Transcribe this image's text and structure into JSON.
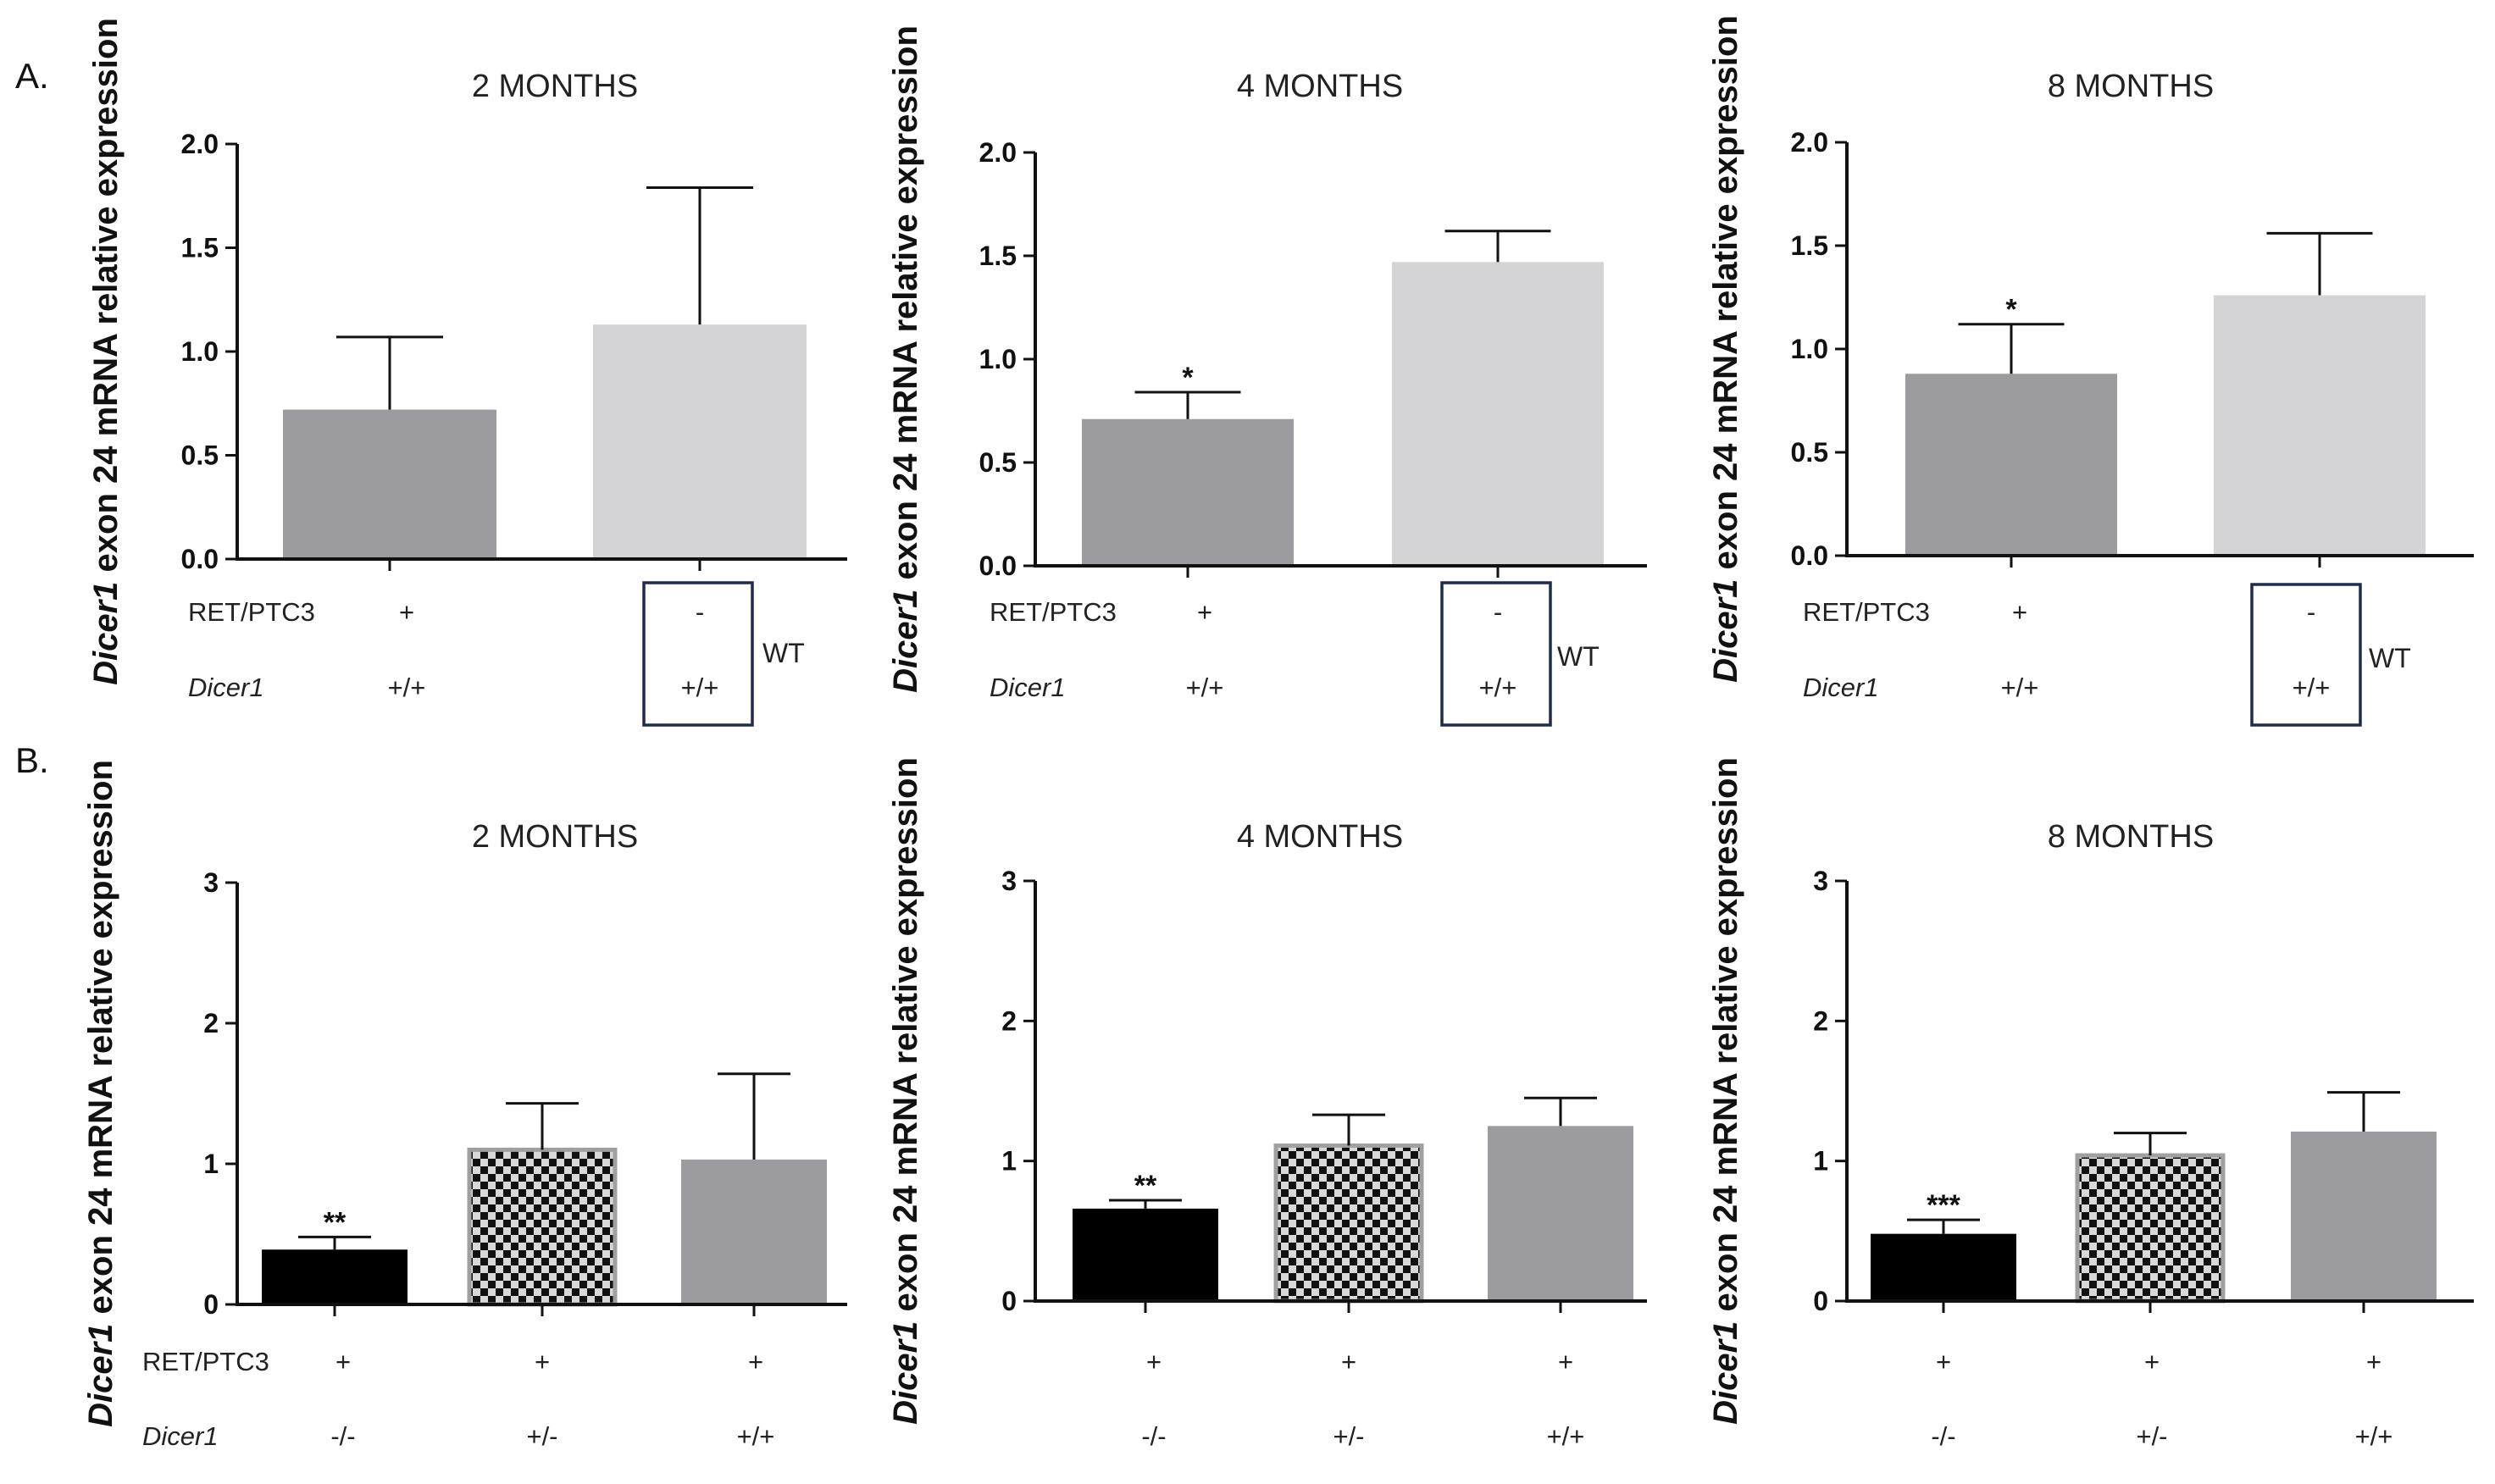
{
  "figure": {
    "panel_letters": [
      "A.",
      "B."
    ],
    "colors": {
      "dark_gray": "#9c9ca0",
      "light_gray": "#d4d4d6",
      "black": "#000000",
      "checker_dark": "#111111",
      "checker_light": "#d8d8d8",
      "checker_border": "#a0a0a0",
      "wt_box": "#1f2d4a"
    }
  },
  "chart_data": [
    {
      "id": "A1",
      "row": "A",
      "type": "bar",
      "title": "2 MONTHS",
      "ylabel_gene": "Dicer1",
      "ylabel_rest": " exon 24 mRNA relative expression",
      "ylim": [
        0,
        2.0
      ],
      "yticks": [
        "0.0",
        "0.5",
        "1.0",
        "1.5",
        "2.0"
      ],
      "bars": [
        {
          "value": 0.72,
          "error": 0.35,
          "color": "#9c9ca0",
          "fill": "solid",
          "sig": ""
        },
        {
          "value": 1.13,
          "error": 0.66,
          "color": "#d4d4d6",
          "fill": "solid",
          "sig": ""
        }
      ],
      "genotype_rows": [
        {
          "label": "RET/PTC3",
          "italic": false,
          "values": [
            "+",
            "-"
          ]
        },
        {
          "label": "Dicer1",
          "italic": true,
          "values": [
            "+/+",
            "+/+"
          ]
        }
      ],
      "wt_label": "WT"
    },
    {
      "id": "A2",
      "row": "A",
      "type": "bar",
      "title": "4 MONTHS",
      "ylabel_gene": "Dicer1",
      "ylabel_rest": " exon 24 mRNA relative expression",
      "ylim": [
        0,
        2.0
      ],
      "yticks": [
        "0.0",
        "0.5",
        "1.0",
        "1.5",
        "2.0"
      ],
      "bars": [
        {
          "value": 0.71,
          "error": 0.13,
          "color": "#9c9ca0",
          "fill": "solid",
          "sig": "*"
        },
        {
          "value": 1.47,
          "error": 0.15,
          "color": "#d4d4d6",
          "fill": "solid",
          "sig": ""
        }
      ],
      "genotype_rows": [
        {
          "label": "RET/PTC3",
          "italic": false,
          "values": [
            "+",
            "-"
          ]
        },
        {
          "label": "Dicer1",
          "italic": true,
          "values": [
            "+/+",
            "+/+"
          ]
        }
      ],
      "wt_label": "WT"
    },
    {
      "id": "A3",
      "row": "A",
      "type": "bar",
      "title": "8 MONTHS",
      "ylabel_gene": "Dicer1",
      "ylabel_rest": " exon 24 mRNA relative expression",
      "ylim": [
        0,
        2.0
      ],
      "yticks": [
        "0.0",
        "0.5",
        "1.0",
        "1.5",
        "2.0"
      ],
      "bars": [
        {
          "value": 0.88,
          "error": 0.24,
          "color": "#9c9ca0",
          "fill": "solid",
          "sig": "*"
        },
        {
          "value": 1.26,
          "error": 0.3,
          "color": "#d4d4d6",
          "fill": "solid",
          "sig": ""
        }
      ],
      "genotype_rows": [
        {
          "label": "RET/PTC3",
          "italic": false,
          "values": [
            "+",
            "-"
          ]
        },
        {
          "label": "Dicer1",
          "italic": true,
          "values": [
            "+/+",
            "+/+"
          ]
        }
      ],
      "wt_label": "WT"
    },
    {
      "id": "B1",
      "row": "B",
      "type": "bar",
      "title": "2 MONTHS",
      "ylabel_gene": "Dicer1",
      "ylabel_rest": " exon 24 mRNA relative expression",
      "ylim": [
        0,
        3
      ],
      "yticks": [
        "0",
        "1",
        "2",
        "3"
      ],
      "bars": [
        {
          "value": 0.39,
          "error": 0.09,
          "color": "#000000",
          "fill": "solid",
          "sig": "**"
        },
        {
          "value": 1.1,
          "error": 0.33,
          "color": "#111111",
          "fill": "checker",
          "sig": ""
        },
        {
          "value": 1.03,
          "error": 0.61,
          "color": "#9c9ca0",
          "fill": "solid",
          "sig": ""
        }
      ],
      "genotype_rows": [
        {
          "label": "RET/PTC3",
          "italic": false,
          "values": [
            "+",
            "+",
            "+"
          ]
        },
        {
          "label": "Dicer1",
          "italic": true,
          "values": [
            "-/-",
            "+/-",
            "+/+"
          ]
        }
      ]
    },
    {
      "id": "B2",
      "row": "B",
      "type": "bar",
      "title": "4 MONTHS",
      "ylabel_gene": "Dicer1",
      "ylabel_rest": " exon 24 mRNA relative expression",
      "ylim": [
        0,
        3
      ],
      "yticks": [
        "0",
        "1",
        "2",
        "3"
      ],
      "bars": [
        {
          "value": 0.66,
          "error": 0.06,
          "color": "#000000",
          "fill": "solid",
          "sig": "**"
        },
        {
          "value": 1.11,
          "error": 0.22,
          "color": "#111111",
          "fill": "checker",
          "sig": ""
        },
        {
          "value": 1.25,
          "error": 0.2,
          "color": "#9c9ca0",
          "fill": "solid",
          "sig": ""
        }
      ],
      "genotype_rows": [
        {
          "label": "",
          "italic": false,
          "values": [
            "+",
            "+",
            "+"
          ]
        },
        {
          "label": "",
          "italic": true,
          "values": [
            "-/-",
            "+/-",
            "+/+"
          ]
        }
      ]
    },
    {
      "id": "B3",
      "row": "B",
      "type": "bar",
      "title": "8 MONTHS",
      "ylabel_gene": "Dicer1",
      "ylabel_rest": " exon 24 mRNA relative expression",
      "ylim": [
        0,
        3
      ],
      "yticks": [
        "0",
        "1",
        "2",
        "3"
      ],
      "bars": [
        {
          "value": 0.48,
          "error": 0.1,
          "color": "#000000",
          "fill": "solid",
          "sig": "***"
        },
        {
          "value": 1.04,
          "error": 0.16,
          "color": "#111111",
          "fill": "checker",
          "sig": ""
        },
        {
          "value": 1.21,
          "error": 0.28,
          "color": "#9c9ca0",
          "fill": "solid",
          "sig": ""
        }
      ],
      "genotype_rows": [
        {
          "label": "",
          "italic": false,
          "values": [
            "+",
            "+",
            "+"
          ]
        },
        {
          "label": "",
          "italic": true,
          "values": [
            "-/-",
            "+/-",
            "+/+"
          ]
        }
      ]
    }
  ]
}
